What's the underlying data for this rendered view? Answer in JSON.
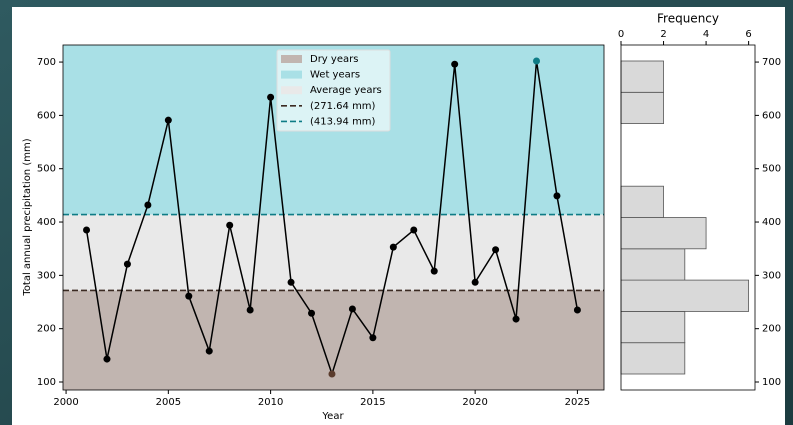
{
  "chart_data": [
    {
      "type": "line",
      "xlabel": "Year",
      "ylabel": "Total annual precipitation (mm)",
      "x": [
        2001,
        2002,
        2003,
        2004,
        2005,
        2006,
        2007,
        2008,
        2009,
        2010,
        2011,
        2012,
        2013,
        2014,
        2015,
        2016,
        2017,
        2018,
        2019,
        2020,
        2021,
        2022,
        2023,
        2024,
        2025
      ],
      "values": [
        385,
        143,
        321,
        432,
        591,
        261,
        158,
        394,
        235,
        634,
        287,
        229,
        115,
        237,
        183,
        353,
        385,
        308,
        696,
        287,
        348,
        218,
        702,
        449,
        235
      ],
      "color": "#000000",
      "marker_colors": [
        "#000000",
        "#000000",
        "#000000",
        "#000000",
        "#000000",
        "#000000",
        "#000000",
        "#000000",
        "#000000",
        "#000000",
        "#000000",
        "#000000",
        "#5a3b2c",
        "#000000",
        "#000000",
        "#000000",
        "#000000",
        "#000000",
        "#000000",
        "#000000",
        "#000000",
        "#000000",
        "#0e7c86",
        "#000000",
        "#000000"
      ],
      "xlim": [
        1999.85,
        2026.3
      ],
      "ylim": [
        85,
        732
      ],
      "xticks": [
        2000,
        2005,
        2010,
        2015,
        2020,
        2025
      ],
      "yticks": [
        100,
        200,
        300,
        400,
        500,
        600,
        700
      ],
      "thresholds": [
        {
          "name": "(271.64 mm)",
          "value": 271.64,
          "color": "#3b2a22"
        },
        {
          "name": "(413.94 mm)",
          "value": 413.94,
          "color": "#0e7c86"
        }
      ],
      "bands": [
        {
          "name": "Dry years",
          "color": "#c1b5b0",
          "zone": "below"
        },
        {
          "name": "Wet years",
          "color": "#a9e0e6",
          "zone": "above"
        },
        {
          "name": "Average years",
          "color": "#e9e9e9",
          "zone": "between"
        }
      ],
      "legend": "upper center"
    },
    {
      "type": "histogram",
      "orientation": "horizontal",
      "xlabel": "Frequency",
      "bins": [
        115,
        173.7,
        232.4,
        291.1,
        349.8,
        408.5,
        467.2,
        525.9,
        584.6,
        643.3,
        702
      ],
      "counts": [
        3,
        3,
        6,
        3,
        4,
        2,
        0,
        0,
        2,
        2
      ],
      "color": "#d9d9d9",
      "xlim": [
        0,
        6.3
      ],
      "ylim": [
        85,
        732
      ],
      "xticks": [
        0,
        2,
        4,
        6
      ],
      "yticks": [
        100,
        200,
        300,
        400,
        500,
        600,
        700
      ]
    }
  ]
}
